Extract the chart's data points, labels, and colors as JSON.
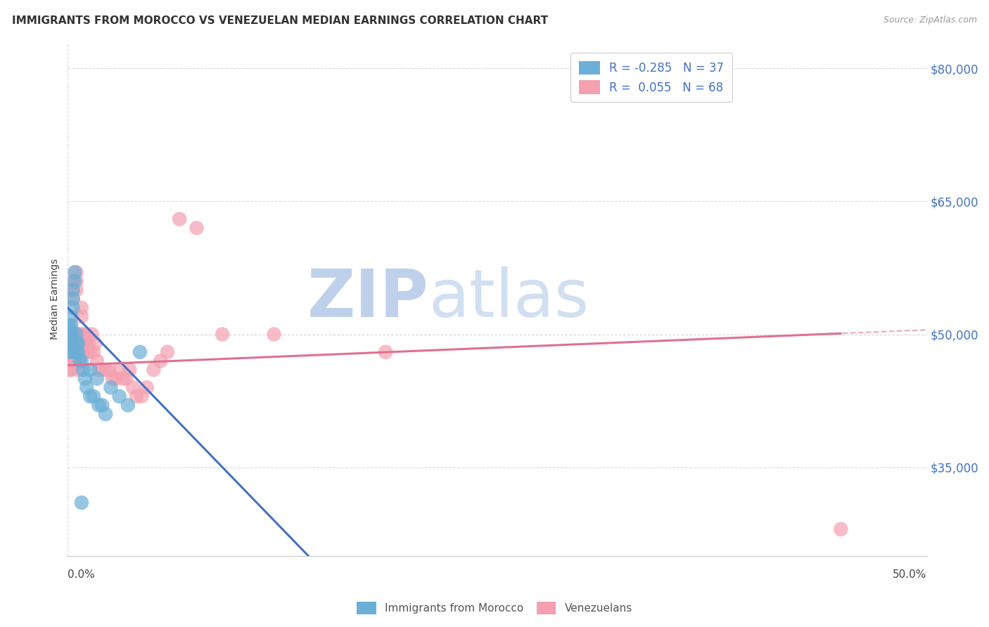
{
  "title": "IMMIGRANTS FROM MOROCCO VS VENEZUELAN MEDIAN EARNINGS CORRELATION CHART",
  "source": "Source: ZipAtlas.com",
  "ylabel": "Median Earnings",
  "yticks": [
    35000,
    50000,
    65000,
    80000
  ],
  "ytick_labels": [
    "$35,000",
    "$50,000",
    "$65,000",
    "$80,000"
  ],
  "watermark_zip": "ZIP",
  "watermark_atlas": "atlas",
  "legend_entries": [
    {
      "label": "R = -0.285   N = 37",
      "color": "#aec6f0"
    },
    {
      "label": "R =  0.055   N = 68",
      "color": "#f4b8c8"
    }
  ],
  "legend_footer": [
    "Immigrants from Morocco",
    "Venezuelans"
  ],
  "morocco_x": [
    0.001,
    0.001,
    0.001,
    0.001,
    0.001,
    0.002,
    0.002,
    0.002,
    0.002,
    0.003,
    0.003,
    0.003,
    0.003,
    0.004,
    0.004,
    0.005,
    0.005,
    0.005,
    0.006,
    0.006,
    0.007,
    0.008,
    0.009,
    0.01,
    0.011,
    0.013,
    0.015,
    0.018,
    0.02,
    0.022,
    0.025,
    0.03,
    0.035,
    0.042,
    0.013,
    0.017,
    0.008
  ],
  "morocco_y": [
    48000,
    49000,
    50000,
    50500,
    51000,
    49500,
    50000,
    51000,
    52000,
    55000,
    53000,
    54000,
    48000,
    57000,
    56000,
    49000,
    48000,
    50000,
    49000,
    48000,
    47000,
    47000,
    46000,
    45000,
    44000,
    43000,
    43000,
    42000,
    42000,
    41000,
    44000,
    43000,
    42000,
    48000,
    46000,
    45000,
    31000
  ],
  "venezuela_x": [
    0.001,
    0.001,
    0.001,
    0.001,
    0.002,
    0.002,
    0.002,
    0.002,
    0.002,
    0.003,
    0.003,
    0.003,
    0.003,
    0.003,
    0.004,
    0.004,
    0.004,
    0.004,
    0.005,
    0.005,
    0.005,
    0.005,
    0.005,
    0.006,
    0.006,
    0.006,
    0.006,
    0.007,
    0.007,
    0.007,
    0.008,
    0.008,
    0.008,
    0.009,
    0.009,
    0.01,
    0.01,
    0.011,
    0.011,
    0.012,
    0.013,
    0.014,
    0.015,
    0.016,
    0.017,
    0.018,
    0.02,
    0.022,
    0.024,
    0.026,
    0.028,
    0.03,
    0.032,
    0.034,
    0.036,
    0.038,
    0.04,
    0.043,
    0.046,
    0.05,
    0.054,
    0.058,
    0.065,
    0.075,
    0.09,
    0.12,
    0.185,
    0.45
  ],
  "venezuela_y": [
    48000,
    49000,
    47000,
    46000,
    50000,
    48000,
    49000,
    47000,
    46000,
    55000,
    56000,
    54000,
    48000,
    47000,
    50000,
    49000,
    48000,
    47000,
    57000,
    56000,
    55000,
    50000,
    48000,
    49000,
    48000,
    47000,
    46000,
    50000,
    49000,
    48000,
    53000,
    52000,
    50000,
    49000,
    48000,
    50000,
    49000,
    50000,
    48000,
    49000,
    48000,
    50000,
    48000,
    49000,
    47000,
    46000,
    46000,
    46000,
    46000,
    45000,
    45000,
    46000,
    45000,
    45000,
    46000,
    44000,
    43000,
    43000,
    44000,
    46000,
    47000,
    48000,
    63000,
    62000,
    50000,
    50000,
    48000,
    28000
  ],
  "morocco_color": "#6baed6",
  "venezuela_color": "#f4a0b0",
  "morocco_line_color": "#4472c4",
  "venezuela_line_color": "#e07090",
  "dashed_line_color": "#9fbce8",
  "background_color": "#ffffff",
  "grid_color": "#d8d8e0",
  "title_fontsize": 11,
  "source_fontsize": 9,
  "watermark_color_zip": "#b8cce8",
  "watermark_color_atlas": "#c8d8f0",
  "xlim": [
    0.0,
    0.5
  ],
  "ylim": [
    25000,
    83000
  ],
  "morocco_trend": [
    -200000,
    53000
  ],
  "venezuela_trend": [
    8000,
    46500
  ]
}
